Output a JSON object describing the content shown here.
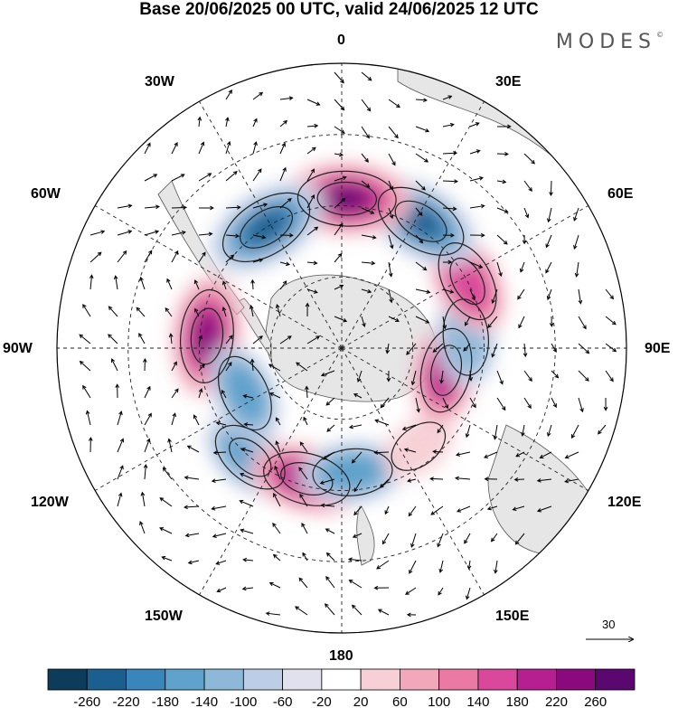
{
  "title": "Base 20/06/2025 00 UTC, valid 24/06/2025 12 UTC",
  "brand": "MODES",
  "brand_mark": "©",
  "lon_labels": {
    "l0": "0",
    "l30e": "30E",
    "l60e": "60E",
    "l90e": "90E",
    "l120e": "120E",
    "l150e": "150E",
    "l180": "180",
    "l150w": "150W",
    "l120w": "120W",
    "l90w": "90W",
    "l60w": "60W",
    "l30w": "30W"
  },
  "reference_vector": {
    "label": "30"
  },
  "colorbar": {
    "ticks": [
      "-260",
      "-220",
      "-180",
      "-140",
      "-100",
      "-60",
      "-20",
      "20",
      "60",
      "100",
      "140",
      "180",
      "220",
      "260"
    ],
    "colors": [
      "#0d3b5a",
      "#1a5f8f",
      "#3a85bb",
      "#5fa2cc",
      "#8db8d8",
      "#bccde6",
      "#e1e1ee",
      "#ffffff",
      "#f6d0d6",
      "#f2a8ba",
      "#ea7aa4",
      "#d9489a",
      "#b51f8f",
      "#8a0a7e",
      "#5a0870"
    ]
  },
  "anomaly_cells": [
    {
      "lon": -40,
      "lat": -50,
      "value": -160
    },
    {
      "lon": -15,
      "lat": -52,
      "value": 200
    },
    {
      "lon": 5,
      "lat": -55,
      "value": -150
    },
    {
      "lon": 38,
      "lat": -55,
      "value": 40
    },
    {
      "lon": 78,
      "lat": -60,
      "value": 180
    },
    {
      "lon": 95,
      "lat": -55,
      "value": -130
    },
    {
      "lon": 118,
      "lat": -50,
      "value": 170
    },
    {
      "lon": 148,
      "lat": -48,
      "value": -240
    },
    {
      "lon": 178,
      "lat": -48,
      "value": 260
    },
    {
      "lon": -148,
      "lat": -50,
      "value": -250
    },
    {
      "lon": -95,
      "lat": -52,
      "value": 230
    },
    {
      "lon": -65,
      "lat": -60,
      "value": -140
    }
  ]
}
